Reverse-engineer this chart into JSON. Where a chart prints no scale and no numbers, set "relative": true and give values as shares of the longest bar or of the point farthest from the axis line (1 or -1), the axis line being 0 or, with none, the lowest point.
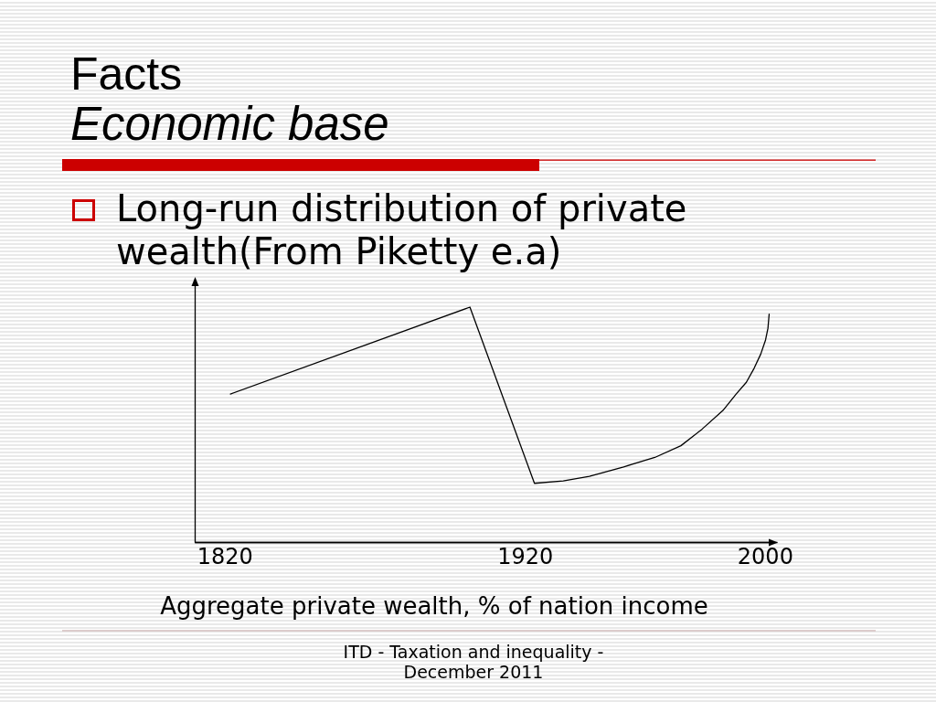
{
  "chart_data": {
    "type": "line",
    "title": "Facts",
    "subtitle": "Economic base",
    "annotations": [
      "Long-run distribution of private wealth(From Piketty e.a)",
      "Aggregate private wealth, % of nation income",
      "ITD - Taxation and inequality - December 2011"
    ],
    "x": [
      1821.9,
      1901.7,
      1923.2,
      1932.8,
      1941.5,
      1952.9,
      1963.3,
      1972,
      1979,
      1986,
      1990.4,
      1993.8,
      1996.4,
      1998.6,
      2000.2,
      2001,
      2001.4
    ],
    "series": [
      {
        "color": "#000000",
        "values": [
          0.63,
          1,
          0.25,
          0.26,
          0.28,
          0.32,
          0.36,
          0.41,
          0.48,
          0.56,
          0.63,
          0.68,
          0.74,
          0.8,
          0.86,
          0.91,
          0.97
        ]
      }
    ],
    "relative": true,
    "xlim": [
      1810,
      2004
    ],
    "xticks": [
      1820,
      1920,
      2000
    ],
    "marker": "none",
    "line_style": "solid"
  }
}
